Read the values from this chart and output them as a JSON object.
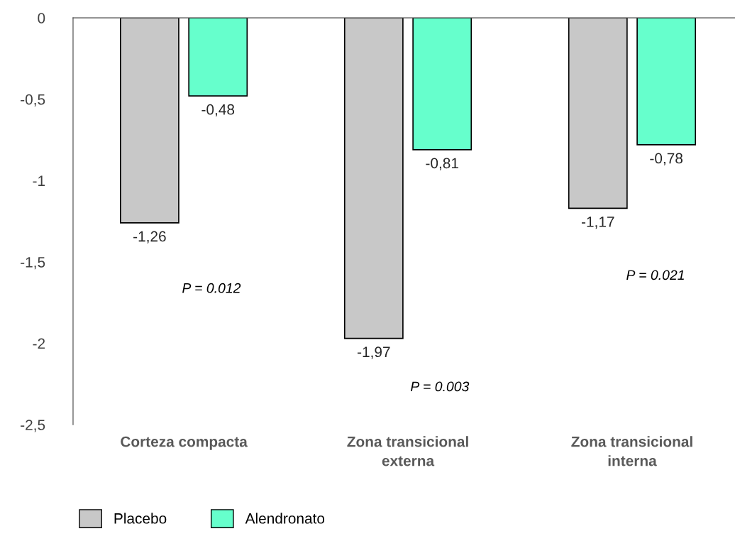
{
  "chart_data": {
    "type": "bar",
    "categories": [
      "Corteza compacta",
      "Zona transicional\nexterna",
      "Zona transicional\ninterna"
    ],
    "series": [
      {
        "name": "Placebo",
        "color": "#c8c8c8",
        "values": [
          -1.26,
          -1.97,
          -1.17
        ],
        "value_labels": [
          "-1,26",
          "-1,97",
          "-1,17"
        ]
      },
      {
        "name": "Alendronato",
        "color": "#66ffcc",
        "values": [
          -0.48,
          -0.81,
          -0.78
        ],
        "value_labels": [
          "-0,48",
          "-0,81",
          "-0,78"
        ]
      }
    ],
    "ylim": [
      -2.5,
      0
    ],
    "yticks": [
      {
        "value": 0,
        "label": "0"
      },
      {
        "value": -0.5,
        "label": "-0,5"
      },
      {
        "value": -1,
        "label": "-1"
      },
      {
        "value": -1.5,
        "label": "-1,5"
      },
      {
        "value": -2,
        "label": "-2"
      },
      {
        "value": -2.5,
        "label": "-2,5"
      }
    ],
    "annotations": [
      "P = 0.012",
      "P = 0.003",
      "P = 0.021"
    ],
    "grid": false,
    "legend": "bottom left"
  }
}
